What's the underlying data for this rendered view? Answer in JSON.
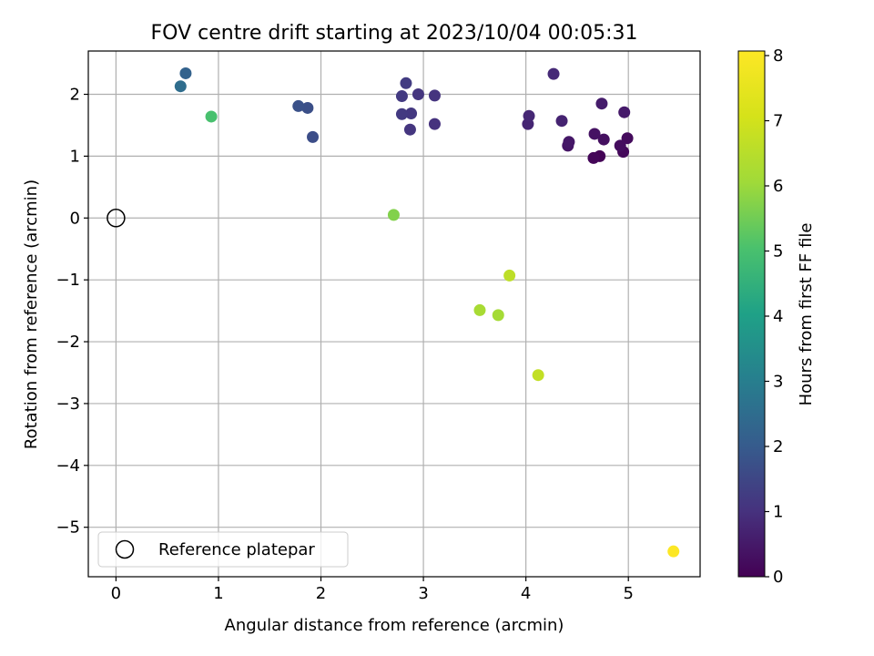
{
  "chart_data": {
    "type": "scatter",
    "title": "FOV centre drift starting at 2023/10/04 00:05:31",
    "xlabel": "Angular distance from reference (arcmin)",
    "ylabel": "Rotation from reference (arcmin)",
    "colorbar_label": "Hours from first FF file",
    "xlim": [
      -0.27,
      5.7
    ],
    "ylim": [
      -5.8,
      2.7
    ],
    "xticks": [
      0,
      1,
      2,
      3,
      4,
      5
    ],
    "xtick_labels": [
      "0",
      "1",
      "2",
      "3",
      "4",
      "5"
    ],
    "yticks": [
      -5,
      -4,
      -3,
      -2,
      -1,
      0,
      1,
      2
    ],
    "ytick_labels": [
      "−5",
      "−4",
      "−3",
      "−2",
      "−1",
      "0",
      "1",
      "2"
    ],
    "colorbar_range": [
      0,
      8.07
    ],
    "colorbar_ticks": [
      0,
      1,
      2,
      3,
      4,
      5,
      6,
      7,
      8
    ],
    "colorbar_tick_labels": [
      "0",
      "1",
      "2",
      "3",
      "4",
      "5",
      "6",
      "7",
      "8"
    ],
    "colormap": "viridis",
    "grid": true,
    "legend": {
      "label": "Reference platepar",
      "position": "lower-left"
    },
    "reference_point": {
      "x": 0,
      "y": 0
    },
    "points": [
      {
        "x": 4.72,
        "y": 1.0,
        "hours": 0.05
      },
      {
        "x": 4.66,
        "y": 0.97,
        "hours": 0.1
      },
      {
        "x": 4.95,
        "y": 1.07,
        "hours": 0.15
      },
      {
        "x": 4.99,
        "y": 1.29,
        "hours": 0.2
      },
      {
        "x": 4.92,
        "y": 1.17,
        "hours": 0.25
      },
      {
        "x": 4.76,
        "y": 1.27,
        "hours": 0.3
      },
      {
        "x": 4.67,
        "y": 1.36,
        "hours": 0.35
      },
      {
        "x": 4.41,
        "y": 1.17,
        "hours": 0.4
      },
      {
        "x": 4.42,
        "y": 1.23,
        "hours": 0.45
      },
      {
        "x": 4.96,
        "y": 1.71,
        "hours": 0.5
      },
      {
        "x": 4.74,
        "y": 1.85,
        "hours": 0.55
      },
      {
        "x": 4.35,
        "y": 1.57,
        "hours": 0.7
      },
      {
        "x": 4.02,
        "y": 1.52,
        "hours": 0.75
      },
      {
        "x": 4.03,
        "y": 1.65,
        "hours": 0.8
      },
      {
        "x": 4.27,
        "y": 2.33,
        "hours": 0.85
      },
      {
        "x": 3.11,
        "y": 1.52,
        "hours": 1.0
      },
      {
        "x": 3.11,
        "y": 1.98,
        "hours": 1.05
      },
      {
        "x": 2.95,
        "y": 2.0,
        "hours": 1.1
      },
      {
        "x": 2.87,
        "y": 1.43,
        "hours": 1.1
      },
      {
        "x": 2.88,
        "y": 1.69,
        "hours": 1.15
      },
      {
        "x": 2.79,
        "y": 1.68,
        "hours": 1.2
      },
      {
        "x": 2.79,
        "y": 1.97,
        "hours": 1.2
      },
      {
        "x": 2.83,
        "y": 2.18,
        "hours": 1.25
      },
      {
        "x": 1.92,
        "y": 1.31,
        "hours": 1.65
      },
      {
        "x": 1.87,
        "y": 1.78,
        "hours": 1.7
      },
      {
        "x": 1.78,
        "y": 1.81,
        "hours": 1.75
      },
      {
        "x": 0.68,
        "y": 2.34,
        "hours": 2.2
      },
      {
        "x": 0.63,
        "y": 2.13,
        "hours": 2.5
      },
      {
        "x": 0.93,
        "y": 1.64,
        "hours": 5.0
      },
      {
        "x": 2.71,
        "y": 0.05,
        "hours": 5.7
      },
      {
        "x": 3.55,
        "y": -1.49,
        "hours": 6.2
      },
      {
        "x": 3.73,
        "y": -1.57,
        "hours": 6.15
      },
      {
        "x": 3.84,
        "y": -0.93,
        "hours": 6.6
      },
      {
        "x": 4.12,
        "y": -2.54,
        "hours": 6.7
      },
      {
        "x": 5.44,
        "y": -5.39,
        "hours": 8.05
      }
    ]
  }
}
